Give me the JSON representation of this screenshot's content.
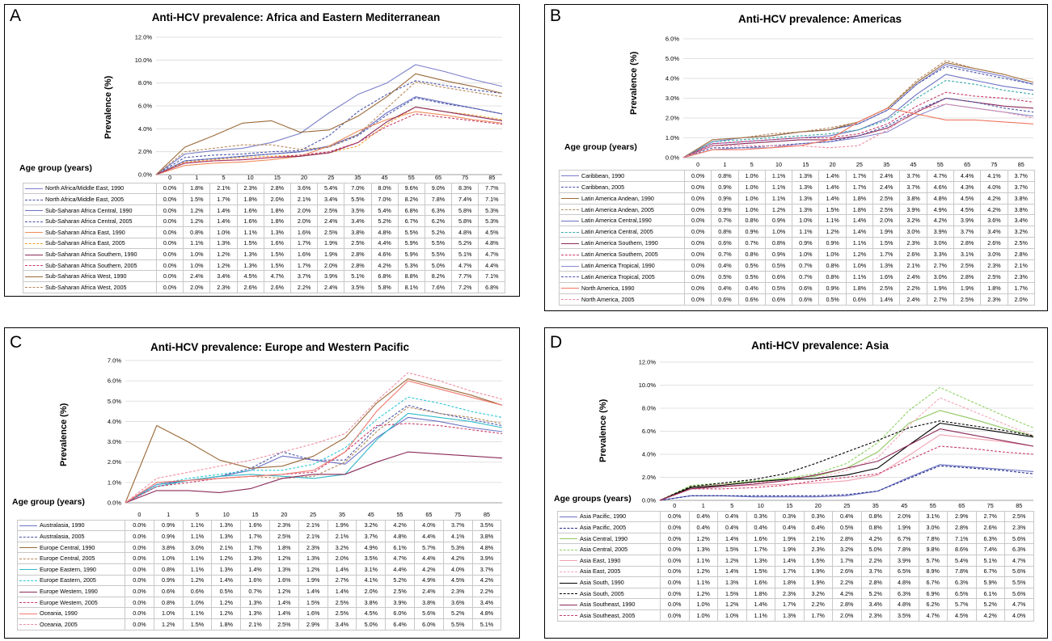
{
  "panels": [
    {
      "id": "a",
      "label": "A",
      "title": "Anti-HCV prevalence: Africa and Eastern Mediterranean",
      "ylabel": "Prevalence (%)",
      "age_label": "Age group (years)"
    },
    {
      "id": "b",
      "label": "B",
      "title": "Anti-HCV prevalence: Americas",
      "ylabel": "Prevalence (%)",
      "age_label": "Age group (years)"
    },
    {
      "id": "c",
      "label": "C",
      "title": "Anti-HCV prevalence: Europe and Western Pacific",
      "ylabel": "Prevalence (%)",
      "age_label": "Age group (years)"
    },
    {
      "id": "d",
      "label": "D",
      "title": "Anti-HCV prevalence: Asia",
      "ylabel": "Prevalence (%)",
      "age_label": "Age groups (years)"
    }
  ],
  "chart_data": [
    {
      "type": "line",
      "title": "Anti-HCV prevalence: Africa and Eastern Mediterranean",
      "ylabel": "Prevalence (%)",
      "xlabel": "Age group (years)",
      "ylim": [
        0,
        12
      ],
      "yticks": [
        "0.0%",
        "2.0%",
        "4.0%",
        "6.0%",
        "8.0%",
        "10.0%",
        "12.0%"
      ],
      "categories": [
        "0",
        "1",
        "5",
        "10",
        "15",
        "20",
        "25",
        "35",
        "45",
        "55",
        "65",
        "75",
        "85"
      ],
      "series": [
        {
          "name": "North Africa/Middle East, 1990",
          "color": "#7A7FC8",
          "dash": false,
          "values": [
            0.0,
            1.8,
            2.1,
            2.3,
            2.8,
            3.6,
            5.4,
            7.0,
            8.0,
            9.6,
            9.0,
            8.3,
            7.7
          ]
        },
        {
          "name": "North Africa/Middle East, 2005",
          "color": "#4B55A8",
          "dash": true,
          "values": [
            0.0,
            1.5,
            1.7,
            1.8,
            2.0,
            2.1,
            3.4,
            5.5,
            7.0,
            8.2,
            7.8,
            7.4,
            7.1
          ]
        },
        {
          "name": "Sub-Saharan Africa Central, 1990",
          "color": "#6C72C2",
          "dash": false,
          "values": [
            0.0,
            1.2,
            1.4,
            1.6,
            1.8,
            2.0,
            2.5,
            3.5,
            5.4,
            6.8,
            6.3,
            5.8,
            5.3
          ]
        },
        {
          "name": "Sub-Saharan Africa Central, 2005",
          "color": "#4B55A8",
          "dash": true,
          "values": [
            0.0,
            1.2,
            1.4,
            1.6,
            1.8,
            2.0,
            2.4,
            3.4,
            5.2,
            6.7,
            6.2,
            5.8,
            5.3
          ]
        },
        {
          "name": "Sub-Saharan Africa East, 1990",
          "color": "#F08C5A",
          "dash": false,
          "values": [
            0.0,
            0.8,
            1.0,
            1.1,
            1.3,
            1.6,
            2.5,
            3.8,
            4.8,
            5.5,
            5.2,
            4.8,
            4.5
          ]
        },
        {
          "name": "Sub-Saharan Africa East, 2005",
          "color": "#F0A030",
          "dash": true,
          "values": [
            0.0,
            1.1,
            1.3,
            1.5,
            1.6,
            1.7,
            1.9,
            2.5,
            4.4,
            5.9,
            5.5,
            5.2,
            4.8
          ]
        },
        {
          "name": "Sub-Saharan Africa Southern, 1990",
          "color": "#8B2A5A",
          "dash": false,
          "values": [
            0.0,
            1.0,
            1.2,
            1.3,
            1.5,
            1.6,
            1.9,
            2.8,
            4.6,
            5.9,
            5.5,
            5.1,
            4.7
          ]
        },
        {
          "name": "Sub-Saharan Africa Southern, 2005",
          "color": "#C83C6A",
          "dash": true,
          "values": [
            0.0,
            1.0,
            1.2,
            1.3,
            1.5,
            1.7,
            2.0,
            2.8,
            4.2,
            5.3,
            5.0,
            4.7,
            4.4
          ]
        },
        {
          "name": "Sub-Saharan Africa West, 1990",
          "color": "#9A6A3A",
          "dash": false,
          "values": [
            0.0,
            2.4,
            3.4,
            4.5,
            4.7,
            3.7,
            3.9,
            5.1,
            6.8,
            8.8,
            8.2,
            7.7,
            7.1
          ]
        },
        {
          "name": "Sub-Saharan Africa West, 2005",
          "color": "#B8885A",
          "dash": true,
          "values": [
            0.0,
            2.0,
            2.3,
            2.6,
            2.6,
            2.2,
            2.4,
            3.5,
            5.8,
            8.1,
            7.6,
            7.2,
            6.8
          ]
        }
      ]
    },
    {
      "type": "line",
      "title": "Anti-HCV prevalence: Americas",
      "ylabel": "Prevalence (%)",
      "xlabel": "Age group (years)",
      "ylim": [
        0,
        6
      ],
      "yticks": [
        "0.0%",
        "1.0%",
        "2.0%",
        "3.0%",
        "4.0%",
        "5.0%",
        "6.0%"
      ],
      "categories": [
        "0",
        "1",
        "5",
        "10",
        "15",
        "20",
        "25",
        "35",
        "45",
        "55",
        "65",
        "75",
        "85"
      ],
      "series": [
        {
          "name": "Caribbean, 1990",
          "color": "#7A7FC8",
          "dash": false,
          "values": [
            0.0,
            0.8,
            1.0,
            1.1,
            1.3,
            1.4,
            1.7,
            2.4,
            3.7,
            4.7,
            4.4,
            4.1,
            3.7
          ]
        },
        {
          "name": "Caribbean, 2005",
          "color": "#4B55A8",
          "dash": true,
          "values": [
            0.0,
            0.9,
            1.0,
            1.1,
            1.3,
            1.4,
            1.7,
            2.4,
            3.7,
            4.6,
            4.3,
            4.0,
            3.7
          ]
        },
        {
          "name": "Latin America Andean, 1990",
          "color": "#9A6A3A",
          "dash": false,
          "values": [
            0.0,
            0.9,
            1.0,
            1.1,
            1.3,
            1.4,
            1.8,
            2.5,
            3.8,
            4.8,
            4.5,
            4.2,
            3.8
          ]
        },
        {
          "name": "Latin America Andean, 2005",
          "color": "#B8885A",
          "dash": true,
          "values": [
            0.0,
            0.9,
            1.0,
            1.2,
            1.3,
            1.5,
            1.8,
            2.5,
            3.9,
            4.9,
            4.5,
            4.2,
            3.8
          ]
        },
        {
          "name": "Latin America Central,1990",
          "color": "#6C72C2",
          "dash": false,
          "values": [
            0.0,
            0.7,
            0.8,
            0.9,
            1.0,
            1.1,
            1.4,
            2.0,
            3.2,
            4.2,
            3.9,
            3.6,
            3.4
          ]
        },
        {
          "name": "Latin America Central, 2005",
          "color": "#3AA8A8",
          "dash": true,
          "values": [
            0.0,
            0.8,
            0.9,
            1.0,
            1.1,
            1.2,
            1.4,
            1.9,
            3.0,
            3.9,
            3.7,
            3.4,
            3.2
          ]
        },
        {
          "name": "Latin America Southern, 1990",
          "color": "#8B2A5A",
          "dash": false,
          "values": [
            0.0,
            0.6,
            0.7,
            0.8,
            0.9,
            0.9,
            1.1,
            1.5,
            2.3,
            3.0,
            2.8,
            2.6,
            2.5
          ]
        },
        {
          "name": "Latin America Southern, 2005",
          "color": "#C83C6A",
          "dash": true,
          "values": [
            0.0,
            0.7,
            0.8,
            0.9,
            1.0,
            1.0,
            1.2,
            1.7,
            2.6,
            3.3,
            3.1,
            3.0,
            2.8
          ]
        },
        {
          "name": "Latin America Tropical, 1990",
          "color": "#8A88D0",
          "dash": false,
          "values": [
            0.0,
            0.4,
            0.5,
            0.5,
            0.7,
            0.8,
            1.0,
            1.3,
            2.1,
            2.7,
            2.5,
            2.3,
            2.1
          ]
        },
        {
          "name": "Latin America Tropical, 2005",
          "color": "#4B55A8",
          "dash": true,
          "values": [
            0.0,
            0.5,
            0.5,
            0.6,
            0.7,
            0.8,
            1.1,
            1.6,
            2.4,
            3.0,
            2.8,
            2.5,
            2.3
          ]
        },
        {
          "name": "North America, 1990",
          "color": "#F07860",
          "dash": false,
          "values": [
            0.0,
            0.4,
            0.4,
            0.5,
            0.6,
            0.9,
            1.8,
            2.5,
            2.2,
            1.9,
            1.9,
            1.8,
            1.7
          ]
        },
        {
          "name": "North America, 2005",
          "color": "#F08CA0",
          "dash": true,
          "values": [
            0.0,
            0.6,
            0.6,
            0.6,
            0.6,
            0.5,
            0.6,
            1.4,
            2.4,
            2.7,
            2.5,
            2.3,
            2.0
          ]
        }
      ]
    },
    {
      "type": "line",
      "title": "Anti-HCV prevalence: Europe and Western Pacific",
      "ylabel": "Prevalence (%)",
      "xlabel": "Age group (years)",
      "ylim": [
        0,
        7
      ],
      "yticks": [
        "0.0%",
        "1.0%",
        "2.0%",
        "3.0%",
        "4.0%",
        "5.0%",
        "6.0%",
        "7.0%"
      ],
      "categories": [
        "0",
        "1",
        "5",
        "10",
        "15",
        "20",
        "25",
        "35",
        "45",
        "55",
        "65",
        "75",
        "85"
      ],
      "series": [
        {
          "name": "Australasia, 1990",
          "color": "#6C72C2",
          "dash": false,
          "values": [
            0.0,
            0.9,
            1.1,
            1.3,
            1.6,
            2.3,
            2.1,
            1.9,
            3.2,
            4.2,
            4.0,
            3.7,
            3.5
          ]
        },
        {
          "name": "Australasia, 2005",
          "color": "#4B55A8",
          "dash": true,
          "values": [
            0.0,
            0.9,
            1.1,
            1.3,
            1.7,
            2.5,
            2.1,
            2.1,
            3.7,
            4.8,
            4.4,
            4.1,
            3.8
          ]
        },
        {
          "name": "Europe Central, 1990",
          "color": "#9A6A3A",
          "dash": false,
          "values": [
            0.0,
            3.8,
            3.0,
            2.1,
            1.7,
            1.8,
            2.3,
            3.2,
            4.9,
            6.1,
            5.7,
            5.3,
            4.8
          ]
        },
        {
          "name": "Europe Central, 2005",
          "color": "#B8885A",
          "dash": true,
          "values": [
            0.0,
            1.0,
            1.1,
            1.2,
            1.3,
            1.2,
            1.3,
            2.0,
            3.5,
            4.7,
            4.4,
            4.2,
            3.9
          ]
        },
        {
          "name": "Europe Eastern, 1990",
          "color": "#30B8C8",
          "dash": false,
          "values": [
            0.0,
            0.8,
            1.1,
            1.3,
            1.4,
            1.3,
            1.2,
            1.4,
            3.1,
            4.4,
            4.2,
            4.0,
            3.7
          ]
        },
        {
          "name": "Europe Eastern, 2005",
          "color": "#30C8D8",
          "dash": true,
          "values": [
            0.0,
            0.9,
            1.2,
            1.4,
            1.6,
            1.6,
            1.9,
            2.7,
            4.1,
            5.2,
            4.9,
            4.5,
            4.2
          ]
        },
        {
          "name": "Europe Western, 1990",
          "color": "#8B2A5A",
          "dash": false,
          "values": [
            0.0,
            0.6,
            0.6,
            0.5,
            0.7,
            1.2,
            1.4,
            1.4,
            2.0,
            2.5,
            2.4,
            2.3,
            2.2
          ]
        },
        {
          "name": "Europe Western, 2005",
          "color": "#C83C6A",
          "dash": true,
          "values": [
            0.0,
            0.8,
            1.0,
            1.2,
            1.3,
            1.4,
            1.5,
            2.5,
            3.8,
            3.9,
            3.8,
            3.6,
            3.4
          ]
        },
        {
          "name": "Oceania, 1990",
          "color": "#F07870",
          "dash": false,
          "values": [
            0.0,
            1.0,
            1.1,
            1.2,
            1.3,
            1.4,
            1.6,
            2.5,
            4.5,
            6.0,
            5.6,
            5.2,
            4.8
          ]
        },
        {
          "name": "Oceania, 2005",
          "color": "#F08CA0",
          "dash": true,
          "values": [
            0.0,
            1.2,
            1.5,
            1.8,
            2.1,
            2.5,
            2.9,
            3.4,
            5.0,
            6.4,
            6.0,
            5.5,
            5.1
          ]
        }
      ]
    },
    {
      "type": "line",
      "title": "Anti-HCV prevalence: Asia",
      "ylabel": "Prevalence (%)",
      "xlabel": "Age groups (years)",
      "ylim": [
        0,
        12
      ],
      "yticks": [
        "0.0%",
        "2.0%",
        "4.0%",
        "6.0%",
        "8.0%",
        "10.0%",
        "12.0%"
      ],
      "categories": [
        "0",
        "1",
        "5",
        "10",
        "15",
        "20",
        "25",
        "35",
        "45",
        "55",
        "65",
        "75",
        "85"
      ],
      "series": [
        {
          "name": "Asia Pacific, 1990",
          "color": "#6C72C2",
          "dash": false,
          "values": [
            0.0,
            0.4,
            0.4,
            0.3,
            0.3,
            0.3,
            0.4,
            0.8,
            2.0,
            3.1,
            2.9,
            2.7,
            2.5
          ]
        },
        {
          "name": "Asia Pacific, 2005",
          "color": "#1E2A8C",
          "dash": true,
          "values": [
            0.0,
            0.4,
            0.4,
            0.4,
            0.4,
            0.4,
            0.5,
            0.8,
            1.9,
            3.0,
            2.8,
            2.6,
            2.3
          ]
        },
        {
          "name": "Asia Central, 1990",
          "color": "#90C860",
          "dash": false,
          "values": [
            0.0,
            1.2,
            1.4,
            1.6,
            1.9,
            2.1,
            2.8,
            4.2,
            6.7,
            7.8,
            7.1,
            6.3,
            5.6
          ]
        },
        {
          "name": "Asia Central, 2005",
          "color": "#8CD060",
          "dash": true,
          "values": [
            0.0,
            1.3,
            1.5,
            1.7,
            1.9,
            2.3,
            3.2,
            5.0,
            7.8,
            9.8,
            8.6,
            7.4,
            6.3
          ]
        },
        {
          "name": "Asia East, 1990",
          "color": "#F0A0B0",
          "dash": false,
          "values": [
            0.0,
            1.1,
            1.2,
            1.3,
            1.4,
            1.5,
            1.7,
            2.2,
            3.9,
            5.7,
            5.4,
            5.1,
            4.7
          ]
        },
        {
          "name": "Asia East, 2005",
          "color": "#F4A8B8",
          "dash": true,
          "values": [
            0.0,
            1.2,
            1.4,
            1.5,
            1.7,
            1.9,
            2.6,
            3.7,
            6.5,
            8.9,
            7.8,
            6.7,
            5.6
          ]
        },
        {
          "name": "Asia South, 1990",
          "color": "#000000",
          "dash": false,
          "values": [
            0.0,
            1.1,
            1.3,
            1.6,
            1.8,
            1.9,
            2.2,
            2.8,
            4.8,
            6.7,
            6.3,
            5.9,
            5.5
          ]
        },
        {
          "name": "Asia South, 2005",
          "color": "#000000",
          "dash": true,
          "values": [
            0.0,
            1.2,
            1.5,
            1.8,
            2.3,
            3.2,
            4.2,
            5.2,
            6.3,
            6.9,
            6.5,
            6.1,
            5.6
          ]
        },
        {
          "name": "Asia Southeast, 1990",
          "color": "#8B2A5A",
          "dash": false,
          "values": [
            0.0,
            1.0,
            1.2,
            1.4,
            1.7,
            2.2,
            2.8,
            3.4,
            4.8,
            6.2,
            5.7,
            5.2,
            4.7
          ]
        },
        {
          "name": "Asia Southeast, 2005",
          "color": "#C83C6A",
          "dash": true,
          "values": [
            0.0,
            1.0,
            1.0,
            1.1,
            1.3,
            1.7,
            2.0,
            2.3,
            3.5,
            4.7,
            4.5,
            4.2,
            4.0
          ]
        }
      ]
    }
  ]
}
